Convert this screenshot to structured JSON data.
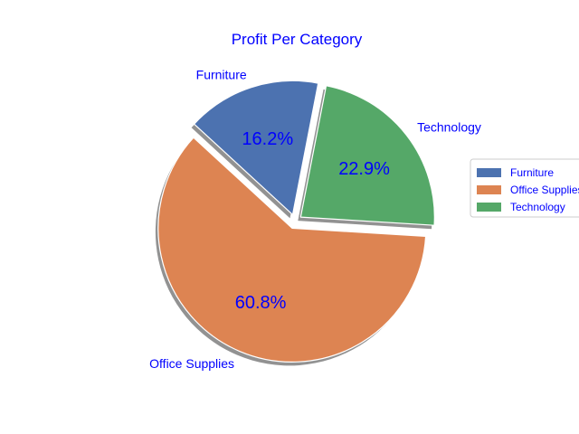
{
  "chart_data": {
    "type": "pie",
    "title": "Profit Per Category",
    "categories": [
      "Furniture",
      "Office Supplies",
      "Technology"
    ],
    "values": [
      16.2,
      60.8,
      22.9
    ],
    "value_labels": [
      "16.2%",
      "60.8%",
      "22.9%"
    ],
    "legend_labels": [
      "Furniture",
      "Office Supplies",
      "Technology"
    ],
    "colors": [
      "#4c72b0",
      "#dd8452",
      "#55a868"
    ],
    "text_color": "#0000ff",
    "shadow": true,
    "explode": true,
    "legend_position": "right"
  }
}
